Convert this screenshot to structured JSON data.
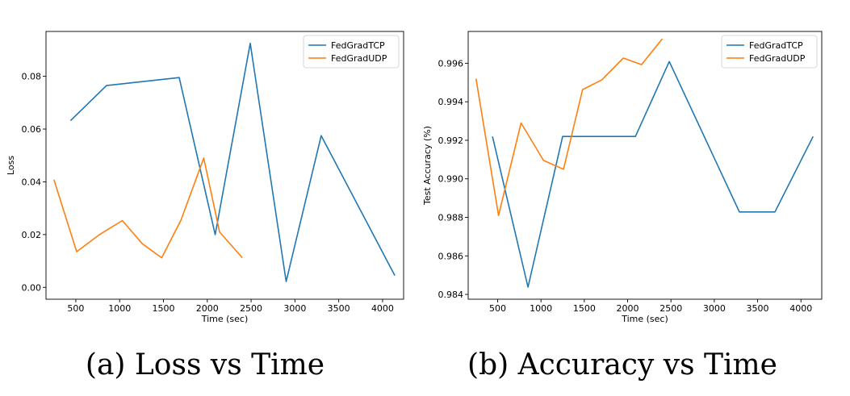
{
  "chart_data": [
    {
      "type": "line",
      "caption": "(a) Loss vs Time",
      "xlabel": "Time (sec)",
      "ylabel": "Loss",
      "xlim": [
        160,
        4240
      ],
      "ylim": [
        -0.0045,
        0.097
      ],
      "xticks": [
        500,
        1000,
        1500,
        2000,
        2500,
        3000,
        3500,
        4000
      ],
      "yticks": [
        0.0,
        0.02,
        0.04,
        0.06,
        0.08
      ],
      "ytick_labels": [
        "0.00",
        "0.02",
        "0.04",
        "0.06",
        "0.08"
      ],
      "legend_position": "top-right",
      "grid": false,
      "series": [
        {
          "name": "FedGradTCP",
          "color": "#1f77b4",
          "x": [
            440,
            850,
            1680,
            2090,
            2490,
            2900,
            3300,
            4140
          ],
          "y": [
            0.0632,
            0.0765,
            0.0795,
            0.02,
            0.0925,
            0.0022,
            0.0575,
            0.0045
          ]
        },
        {
          "name": "FedGradUDP",
          "color": "#ff7f0e",
          "x": [
            250,
            510,
            770,
            1030,
            1260,
            1480,
            1700,
            1960,
            2140,
            2400
          ],
          "y": [
            0.0408,
            0.0135,
            0.02,
            0.0253,
            0.0165,
            0.0112,
            0.0255,
            0.049,
            0.021,
            0.0112
          ]
        }
      ]
    },
    {
      "type": "line",
      "caption": "(b) Accuracy vs Time",
      "xlabel": "Time (sec)",
      "ylabel": "Test Accuracy (%)",
      "xlim": [
        160,
        4240
      ],
      "ylim": [
        0.98375,
        0.99765
      ],
      "xticks": [
        500,
        1000,
        1500,
        2000,
        2500,
        3000,
        3500,
        4000
      ],
      "yticks": [
        0.984,
        0.986,
        0.988,
        0.99,
        0.992,
        0.994,
        0.996
      ],
      "ytick_labels": [
        "0.984",
        "0.986",
        "0.988",
        "0.990",
        "0.992",
        "0.994",
        "0.996"
      ],
      "legend_position": "top-right",
      "grid": false,
      "series": [
        {
          "name": "FedGradTCP",
          "color": "#1f77b4",
          "x": [
            440,
            850,
            1250,
            2090,
            2480,
            3290,
            3700,
            4140
          ],
          "y": [
            0.9922,
            0.98438,
            0.9922,
            0.9922,
            0.99609,
            0.98828,
            0.98828,
            0.9922
          ]
        },
        {
          "name": "FedGradUDP",
          "color": "#ff7f0e",
          "x": [
            250,
            510,
            770,
            1030,
            1260,
            1480,
            1700,
            1950,
            2160,
            2400
          ],
          "y": [
            0.9952,
            0.9881,
            0.9929,
            0.99095,
            0.9905,
            0.99463,
            0.99513,
            0.99627,
            0.99593,
            0.99727
          ]
        }
      ]
    }
  ]
}
